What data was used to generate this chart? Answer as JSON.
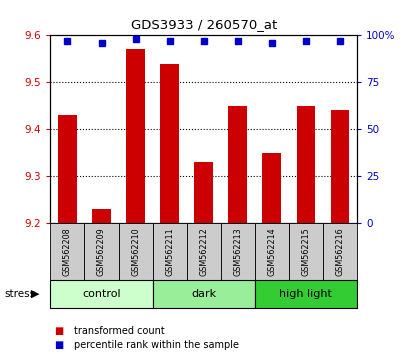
{
  "title": "GDS3933 / 260570_at",
  "samples": [
    "GSM562208",
    "GSM562209",
    "GSM562210",
    "GSM562211",
    "GSM562212",
    "GSM562213",
    "GSM562214",
    "GSM562215",
    "GSM562216"
  ],
  "bar_values": [
    9.43,
    9.23,
    9.57,
    9.54,
    9.33,
    9.45,
    9.35,
    9.45,
    9.44
  ],
  "percentile_values": [
    97,
    96,
    98,
    97,
    97,
    97,
    96,
    97,
    97
  ],
  "ylim_left": [
    9.2,
    9.6
  ],
  "ylim_right": [
    0,
    100
  ],
  "yticks_left": [
    9.2,
    9.3,
    9.4,
    9.5,
    9.6
  ],
  "yticks_right": [
    0,
    25,
    50,
    75,
    100
  ],
  "bar_color": "#cc0000",
  "dot_color": "#0000cc",
  "groups": [
    {
      "label": "control",
      "indices": [
        0,
        1,
        2
      ],
      "color": "#ccffcc"
    },
    {
      "label": "dark",
      "indices": [
        3,
        4,
        5
      ],
      "color": "#99ee99"
    },
    {
      "label": "high light",
      "indices": [
        6,
        7,
        8
      ],
      "color": "#33cc33"
    }
  ],
  "stress_label": "stress",
  "legend_bar_label": "transformed count",
  "legend_dot_label": "percentile rank within the sample",
  "background_color": "#ffffff",
  "plot_bg": "#ffffff",
  "tick_area_bg": "#cccccc",
  "grid_ticks": [
    9.3,
    9.4,
    9.5
  ]
}
